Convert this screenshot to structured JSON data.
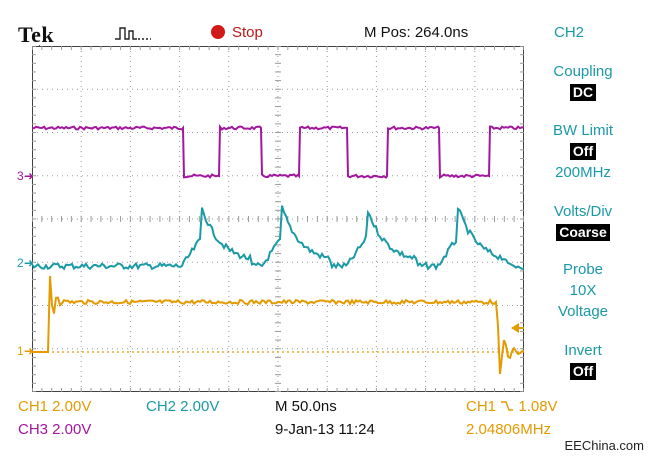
{
  "header": {
    "brand": "Tek",
    "acquire_state": "Stop",
    "m_pos": "M Pos: 264.0ns",
    "menu_channel": "CH2"
  },
  "side_menu": {
    "coupling_label": "Coupling",
    "coupling_value": "DC",
    "bw_limit_label": "BW Limit",
    "bw_limit_value": "Off",
    "bw_limit_freq": "200MHz",
    "volts_div_label": "Volts/Div",
    "volts_div_value": "Coarse",
    "probe_label": "Probe",
    "probe_ratio": "10X",
    "probe_type": "Voltage",
    "invert_label": "Invert",
    "invert_value": "Off"
  },
  "channel_markers": {
    "ch1": "1",
    "ch2": "2",
    "ch3": "3"
  },
  "status_bar": {
    "ch1_scale": "CH1  2.00V",
    "ch2_scale": "CH2  2.00V",
    "ch3_scale": "CH3  2.00V",
    "timebase": "M 50.0ns",
    "date_time": "9-Jan-13 11:24",
    "trigger_source": "CH1",
    "trigger_level": "1.08V",
    "frequency": "2.04806MHz"
  },
  "watermark": "EEChina.com",
  "colors": {
    "ch1": "#e49a00",
    "ch2": "#1a9aa6",
    "ch3": "#a3179e",
    "graticule": "#9a9a9a",
    "stop": "#c01818"
  }
}
